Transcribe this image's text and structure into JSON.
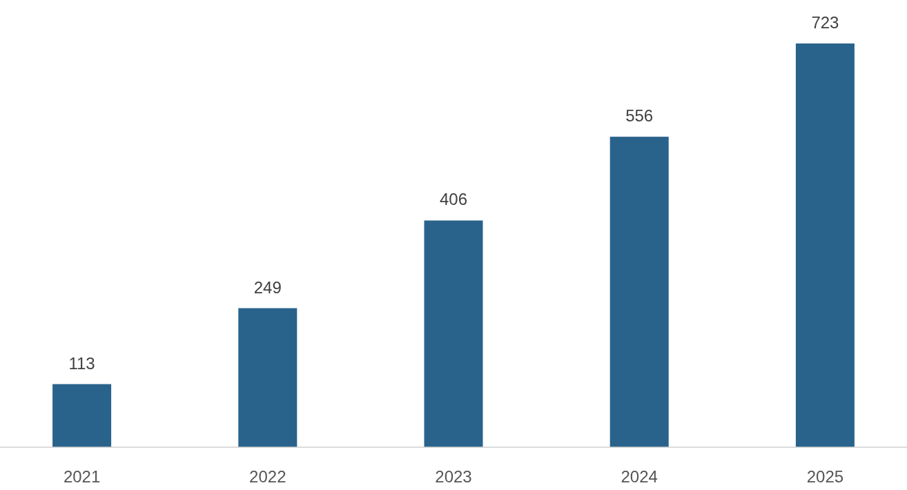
{
  "chart_data": {
    "type": "bar",
    "categories": [
      "2021",
      "2022",
      "2023",
      "2024",
      "2025"
    ],
    "values": [
      113,
      249,
      406,
      556,
      723
    ],
    "color": "#29638c",
    "data_labels": true
  }
}
